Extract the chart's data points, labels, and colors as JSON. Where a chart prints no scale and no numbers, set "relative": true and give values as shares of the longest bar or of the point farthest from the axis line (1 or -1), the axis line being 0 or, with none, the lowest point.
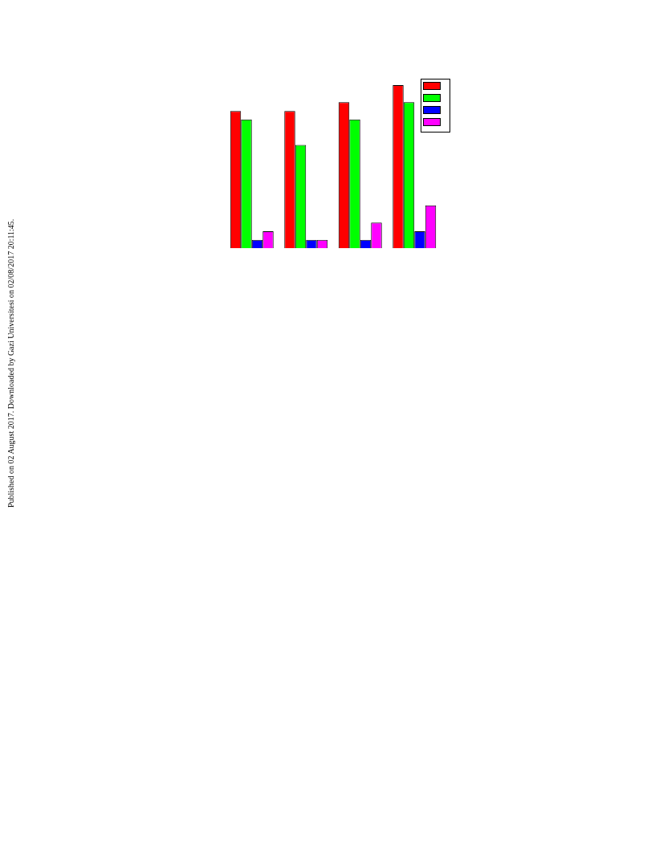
{
  "chart_data": {
    "type": "bar",
    "relative": true,
    "categories": [
      null,
      null,
      null,
      null
    ],
    "series": [
      {
        "color": "#ff0000",
        "values": [
          0.841,
          0.841,
          0.895,
          1
        ]
      },
      {
        "color": "#00ff00",
        "values": [
          0.79,
          0.633,
          0.79,
          0.895
        ]
      },
      {
        "color": "#0000ff",
        "values": [
          0.051,
          0.051,
          0.051,
          0.103
        ]
      },
      {
        "color": "#ff00ff",
        "values": [
          0.103,
          0.051,
          0.156,
          0.262
        ]
      }
    ],
    "grid": false,
    "annotations": [
      "Published on 02 August 2017. Downloaded by Gazi Universitesi on 02/08/2017 20:11:45."
    ]
  }
}
